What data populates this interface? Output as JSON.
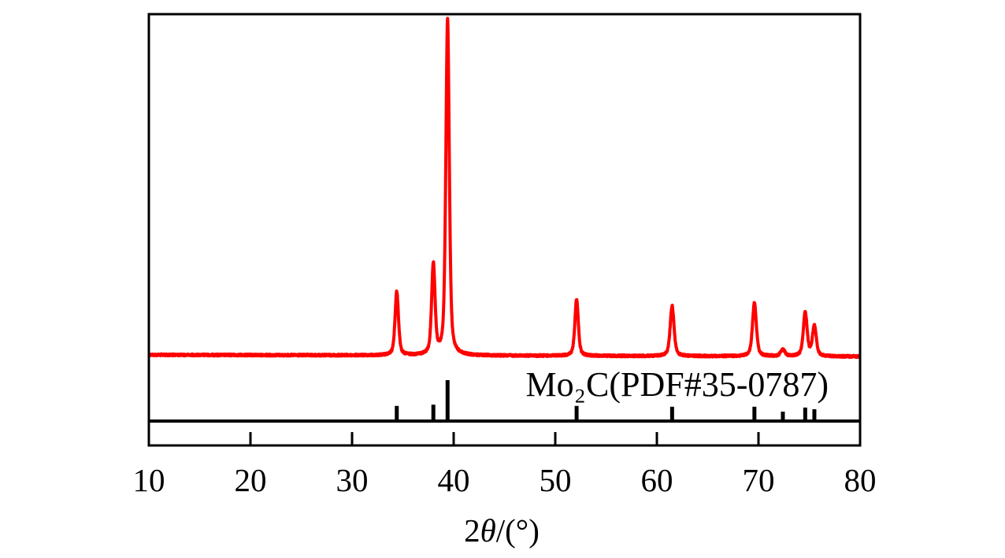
{
  "chart_data": {
    "type": "line",
    "xlabel": "2θ/(°)",
    "xlim": [
      10,
      80
    ],
    "xticks": [
      "10",
      "20",
      "30",
      "40",
      "50",
      "60",
      "70",
      "80"
    ],
    "yticks": [],
    "grid": false,
    "legend": "none",
    "series": [
      {
        "color": "#ff0000",
        "background": [
          {
            "two_theta": 10,
            "rel_intensity": 0.5
          },
          {
            "two_theta": 80,
            "rel_intensity": 0
          }
        ],
        "peaks": [
          {
            "two_theta": 34.4,
            "rel_intensity": 19,
            "fwhm": 0.4
          },
          {
            "two_theta": 38.0,
            "rel_intensity": 27,
            "fwhm": 0.4
          },
          {
            "two_theta": 39.4,
            "rel_intensity": 100,
            "fwhm": 0.4
          },
          {
            "two_theta": 52.1,
            "rel_intensity": 17,
            "fwhm": 0.4
          },
          {
            "two_theta": 61.5,
            "rel_intensity": 15,
            "fwhm": 0.45
          },
          {
            "two_theta": 69.6,
            "rel_intensity": 16,
            "fwhm": 0.45
          },
          {
            "two_theta": 72.4,
            "rel_intensity": 2,
            "fwhm": 0.5
          },
          {
            "two_theta": 74.6,
            "rel_intensity": 13,
            "fwhm": 0.45
          },
          {
            "two_theta": 75.5,
            "rel_intensity": 9,
            "fwhm": 0.45
          }
        ]
      }
    ],
    "reference": {
      "label": "Mo₂C(PDF#35-0787)",
      "style": "stick",
      "color": "#000000",
      "peaks": [
        {
          "two_theta": 34.4,
          "rel_intensity": 37
        },
        {
          "two_theta": 38.0,
          "rel_intensity": 40
        },
        {
          "two_theta": 39.4,
          "rel_intensity": 100
        },
        {
          "two_theta": 52.1,
          "rel_intensity": 37
        },
        {
          "two_theta": 61.5,
          "rel_intensity": 35
        },
        {
          "two_theta": 69.6,
          "rel_intensity": 35
        },
        {
          "two_theta": 72.4,
          "rel_intensity": 23
        },
        {
          "two_theta": 74.6,
          "rel_intensity": 33
        },
        {
          "two_theta": 75.5,
          "rel_intensity": 29
        }
      ]
    }
  }
}
